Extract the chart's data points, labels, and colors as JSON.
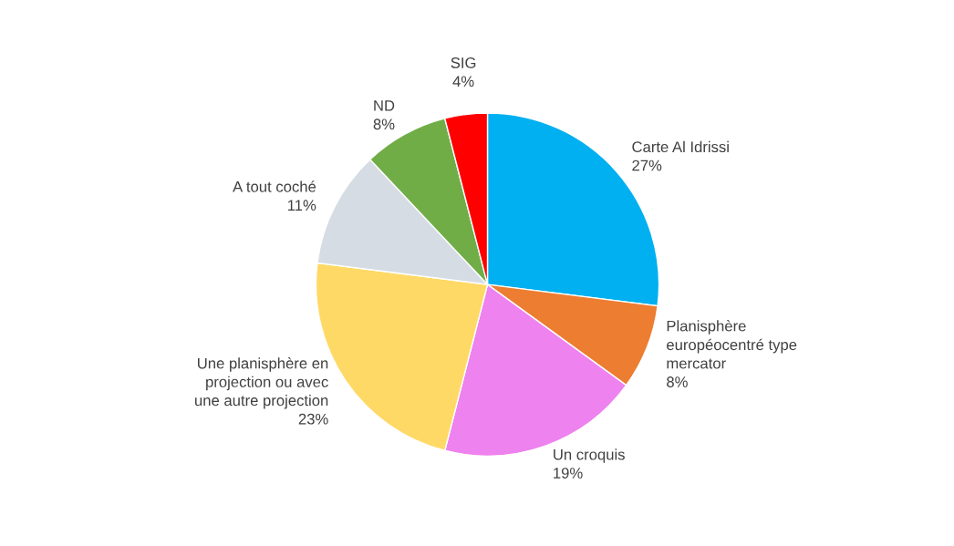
{
  "chart_data": {
    "type": "pie",
    "categories": [
      "Carte Al Idrissi",
      "Planisphère\neuropéocentré type\nmercator",
      "Un croquis",
      "Une planisphère en\nprojection ou avec\nune autre projection",
      "A tout coché",
      "ND",
      "SIG"
    ],
    "values": [
      27,
      8,
      19,
      23,
      11,
      8,
      4
    ],
    "value_labels": [
      "27%",
      "8%",
      "19%",
      "23%",
      "11%",
      "8%",
      "4%"
    ],
    "colors": [
      "#00b0f0",
      "#ed7d31",
      "#ee82ee",
      "#ffd966",
      "#d6dce4",
      "#70ad47",
      "#ff0000"
    ]
  }
}
